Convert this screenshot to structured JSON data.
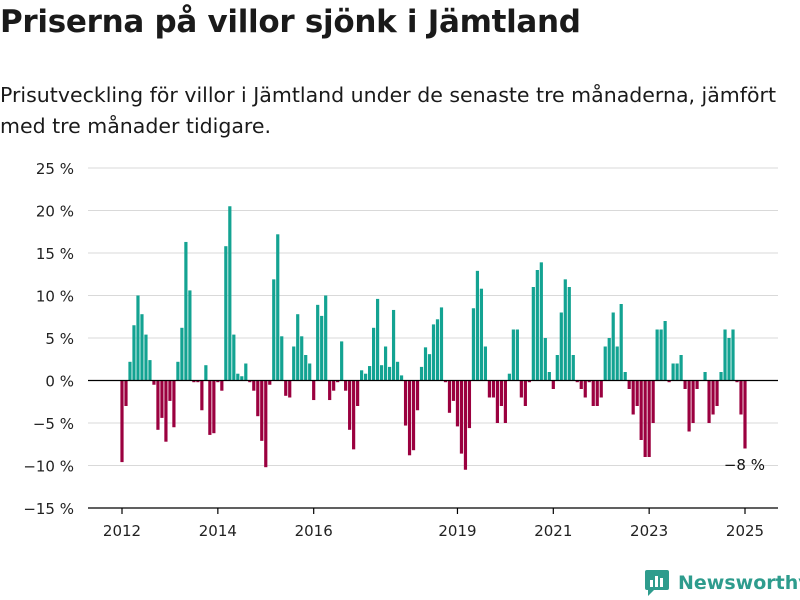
{
  "title": "Priserna på villor sjönk i Jämtland",
  "subtitle": "Prisutveckling för villor i Jämtland under de senaste tre månaderna, jämfört med tre månader tidigare.",
  "brand": "Newsworthy",
  "colors": {
    "positive": "#13a392",
    "negative": "#9b003f",
    "grid": "#d9d9d9",
    "axis": "#000000",
    "brand": "#2e9c8d"
  },
  "chart_data": {
    "type": "bar",
    "title": "Priserna på villor sjönk i Jämtland",
    "ylim": [
      -15,
      25
    ],
    "y_ticks": [
      25,
      20,
      15,
      10,
      5,
      0,
      -5,
      -10,
      -15
    ],
    "y_tick_labels": [
      "25 %",
      "20 %",
      "15 %",
      "10 %",
      "5 %",
      "0 %",
      "−5 %",
      "−10 %",
      "−15 %"
    ],
    "x_ticks": [
      2012,
      2014,
      2016,
      2019,
      2021,
      2023,
      2025
    ],
    "grid": true,
    "annotation": {
      "text": "−8 %"
    },
    "x": [
      "2012-01",
      "2012-02",
      "2012-03",
      "2012-04",
      "2012-05",
      "2012-06",
      "2012-07",
      "2012-08",
      "2012-09",
      "2012-10",
      "2012-11",
      "2012-12",
      "2013-01",
      "2013-02",
      "2013-03",
      "2013-04",
      "2013-05",
      "2013-06",
      "2013-07",
      "2013-08",
      "2013-09",
      "2013-10",
      "2013-11",
      "2013-12",
      "2014-01",
      "2014-02",
      "2014-03",
      "2014-04",
      "2014-05",
      "2014-06",
      "2014-07",
      "2014-08",
      "2014-09",
      "2014-10",
      "2014-11",
      "2014-12",
      "2015-01",
      "2015-02",
      "2015-03",
      "2015-04",
      "2015-05",
      "2015-06",
      "2015-07",
      "2015-08",
      "2015-09",
      "2015-10",
      "2015-11",
      "2015-12",
      "2016-01",
      "2016-02",
      "2016-03",
      "2016-04",
      "2016-05",
      "2016-06",
      "2016-07",
      "2016-08",
      "2016-09",
      "2016-10",
      "2016-11",
      "2016-12",
      "2017-01",
      "2017-02",
      "2017-03",
      "2017-04",
      "2017-05",
      "2017-06",
      "2017-07",
      "2017-08",
      "2017-09",
      "2017-10",
      "2017-11",
      "2017-12",
      "2018-01",
      "2018-02",
      "2018-03",
      "2018-04",
      "2018-05",
      "2018-06",
      "2018-07",
      "2018-08",
      "2018-09",
      "2018-10",
      "2018-11",
      "2018-12",
      "2019-01",
      "2019-02",
      "2019-03",
      "2019-04",
      "2019-05",
      "2019-06",
      "2019-07",
      "2019-08",
      "2019-09",
      "2019-10",
      "2019-11",
      "2019-12",
      "2020-01",
      "2020-02",
      "2020-03",
      "2020-04",
      "2020-05",
      "2020-06",
      "2020-07",
      "2020-08",
      "2020-09",
      "2020-10",
      "2020-11",
      "2020-12",
      "2021-01",
      "2021-02",
      "2021-03",
      "2021-04",
      "2021-05",
      "2021-06",
      "2021-07",
      "2021-08",
      "2021-09",
      "2021-10",
      "2021-11",
      "2021-12",
      "2022-01",
      "2022-02",
      "2022-03",
      "2022-04",
      "2022-05",
      "2022-06",
      "2022-07",
      "2022-08",
      "2022-09",
      "2022-10",
      "2022-11",
      "2022-12",
      "2023-01",
      "2023-02",
      "2023-03",
      "2023-04",
      "2023-05",
      "2023-06",
      "2023-07",
      "2023-08",
      "2023-09",
      "2023-10",
      "2023-11",
      "2023-12",
      "2024-01",
      "2024-02",
      "2024-03",
      "2024-04",
      "2024-05",
      "2024-06",
      "2024-07",
      "2024-08",
      "2024-09",
      "2024-10",
      "2024-11",
      "2024-12",
      "2025-01"
    ],
    "values": [
      -9.6,
      -3.0,
      2.2,
      6.5,
      10.0,
      7.8,
      5.4,
      2.4,
      -0.5,
      -5.8,
      -4.4,
      -7.2,
      -2.4,
      -5.5,
      2.2,
      6.2,
      16.3,
      10.6,
      -0.2,
      -0.2,
      -3.5,
      1.8,
      -6.4,
      -6.2,
      -0.2,
      -1.2,
      15.8,
      20.5,
      5.4,
      0.8,
      0.5,
      2.0,
      -0.2,
      -1.2,
      -4.2,
      -7.1,
      -10.2,
      -0.5,
      11.9,
      17.2,
      5.2,
      -1.8,
      -2.0,
      4.0,
      7.8,
      5.2,
      3.0,
      2.0,
      -2.3,
      8.9,
      7.6,
      10.0,
      -2.3,
      -1.2,
      -0.2,
      4.6,
      -1.2,
      -5.8,
      -8.1,
      -3.0,
      1.2,
      0.8,
      1.7,
      6.2,
      9.6,
      1.8,
      4.0,
      1.6,
      8.3,
      2.2,
      0.6,
      -5.3,
      -8.8,
      -8.2,
      -3.5,
      1.6,
      3.9,
      3.1,
      6.6,
      7.2,
      8.6,
      -0.2,
      -3.8,
      -2.4,
      -5.4,
      -8.6,
      -10.5,
      -5.6,
      8.5,
      12.9,
      10.8,
      4.0,
      -2.0,
      -2.0,
      -5.0,
      -3.0,
      -5.0,
      0.8,
      6.0,
      6.0,
      -2.0,
      -3.0,
      -0.2,
      11.0,
      13.0,
      13.9,
      5.0,
      1.0,
      -1.0,
      3.0,
      8.0,
      11.9,
      11.0,
      3.0,
      -0.2,
      -1.0,
      -2.0,
      -0.2,
      -3.0,
      -3.0,
      -2.0,
      4.0,
      5.0,
      8.0,
      4.0,
      9.0,
      1.0,
      -1.0,
      -4.0,
      -3.0,
      -7.0,
      -9.0,
      -9.0,
      -5.0,
      6.0,
      6.0,
      7.0,
      -0.2,
      2.0,
      2.0,
      3.0,
      -1.0,
      -6.0,
      -5.0,
      -1.0,
      0.0,
      1.0,
      -5.0,
      -4.0,
      -3.0,
      1.0,
      6.0,
      5.0,
      6.0,
      -0.2,
      -4.0,
      -8.0
    ]
  }
}
